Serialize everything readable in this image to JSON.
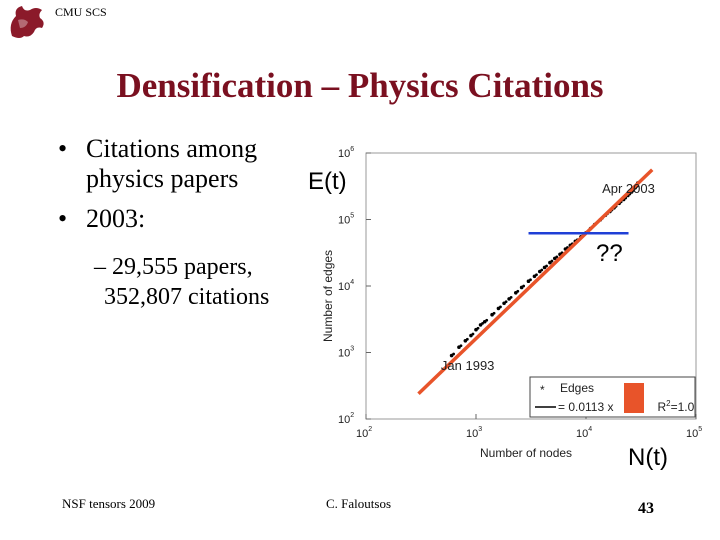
{
  "header": {
    "label": "CMU SCS",
    "logo_icon": "dragon-logo-icon"
  },
  "slide": {
    "title": "Densification – Physics Citations",
    "bullets": [
      {
        "line1": "Citations among",
        "line2": "physics papers"
      },
      {
        "line1": "2003:"
      }
    ],
    "sub_bullet": {
      "line1": "– 29,555 papers,",
      "line2": "352,807 citations"
    },
    "bullet_glyph": "•"
  },
  "overlays": {
    "y_label": "E(t)",
    "x_label": "N(t)",
    "question": "??",
    "colors": {
      "fit_line": "#e8542a",
      "highlight_box": "#e8542a",
      "guide_line": "#1f3fd6"
    }
  },
  "footer": {
    "left": "NSF tensors 2009",
    "center": "C. Faloutsos",
    "page": "43"
  },
  "chart_data": {
    "type": "scatter",
    "x_scale": "log",
    "y_scale": "log",
    "xlim": [
      100,
      100000
    ],
    "ylim": [
      100,
      1000000
    ],
    "xlabel": "Number of nodes",
    "ylabel": "Number of edges",
    "x_ticks": [
      {
        "value": 100,
        "base": "10",
        "exp": "2"
      },
      {
        "value": 1000,
        "base": "10",
        "exp": "3"
      },
      {
        "value": 10000,
        "base": "10",
        "exp": "4"
      },
      {
        "value": 100000,
        "base": "10",
        "exp": "5"
      }
    ],
    "y_ticks": [
      {
        "value": 100,
        "base": "10",
        "exp": "2"
      },
      {
        "value": 1000,
        "base": "10",
        "exp": "3"
      },
      {
        "value": 10000,
        "base": "10",
        "exp": "4"
      },
      {
        "value": 100000,
        "base": "10",
        "exp": "5"
      },
      {
        "value": 1000000,
        "base": "10",
        "exp": "6"
      }
    ],
    "annotations": [
      {
        "text": "Apr 2003",
        "x": 14000,
        "y": 250000
      },
      {
        "text": "Jan 1993",
        "x": 480,
        "y": 550
      }
    ],
    "series": [
      {
        "name": "Edges",
        "x": [
          600,
          700,
          800,
          900,
          1000,
          1100,
          1200,
          1400,
          1600,
          1800,
          2000,
          2300,
          2600,
          3000,
          3400,
          3800,
          4200,
          4700,
          5200,
          5800,
          6500,
          7200,
          8000,
          9000,
          10000,
          11000,
          12000,
          13500,
          15000,
          16500,
          18000,
          20000,
          22000,
          24000,
          26000,
          28000,
          29555
        ],
        "y": [
          900,
          1200,
          1500,
          1800,
          2200,
          2600,
          2900,
          3700,
          4600,
          5500,
          6400,
          7900,
          9500,
          11800,
          14000,
          16500,
          19000,
          22500,
          26000,
          30000,
          36000,
          41000,
          47000,
          55000,
          63000,
          73000,
          84000,
          99000,
          116000,
          132000,
          150000,
          175000,
          200000,
          230000,
          260000,
          300000,
          352807
        ]
      }
    ],
    "fit_line": {
      "x": [
        300,
        40000
      ],
      "y": [
        240,
        560000
      ]
    },
    "legend": {
      "placement": "bottom-right",
      "entries": [
        {
          "marker": "*",
          "label": "Edges"
        },
        {
          "marker": "line",
          "label": "= 0.0113 x",
          "extra": "R",
          "extra_exp": "2",
          "extra_tail": "=1.0"
        }
      ]
    }
  }
}
